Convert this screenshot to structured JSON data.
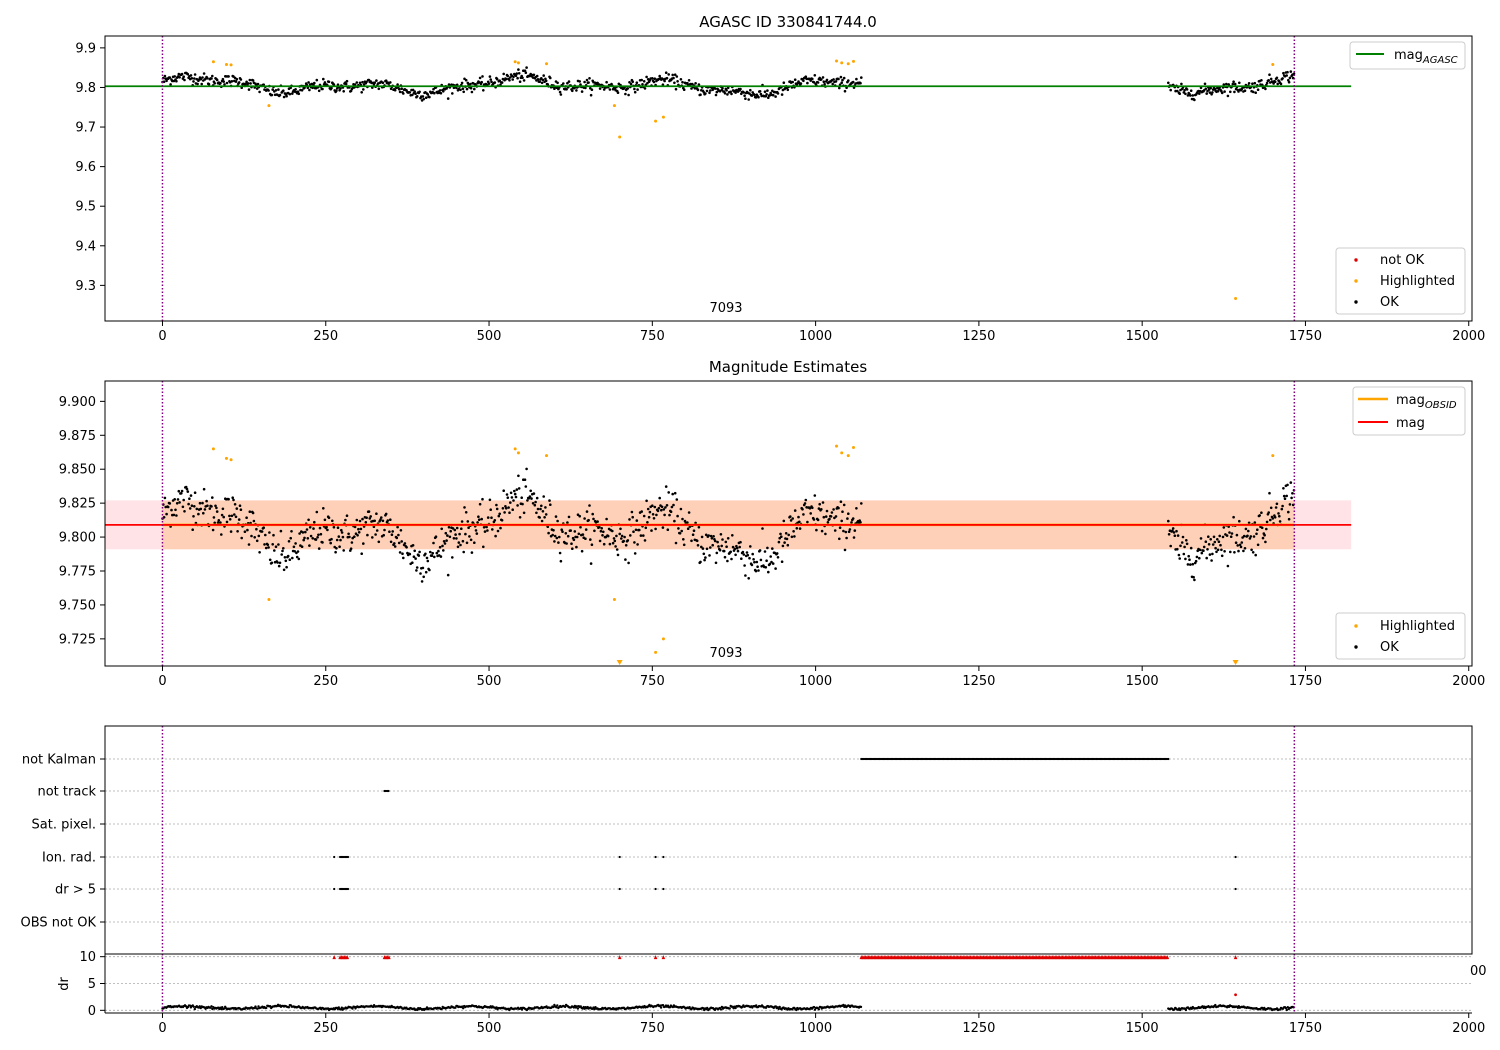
{
  "title": "AGASC ID 330841744.0",
  "panel2_title": "Magnitude Estimates",
  "obsid_label": "7093",
  "x_ticks": [
    0,
    250,
    500,
    750,
    1000,
    1250,
    1500,
    1750,
    2000
  ],
  "colors": {
    "ok": "#000000",
    "highlighted": "#ffa500",
    "not_ok": "#e00000",
    "agasc_line": "#008000",
    "mag_line": "#ff0000",
    "obsid_line": "#ffa500",
    "band": "#ffc0c8",
    "vline": "#800080"
  },
  "legend1": {
    "line": {
      "label_main": "mag",
      "label_sub": "AGASC"
    },
    "points": [
      "not OK",
      "Highlighted",
      "OK"
    ]
  },
  "legend2": {
    "lines": [
      {
        "label_main": "mag",
        "label_sub": "OBSID"
      },
      {
        "label_main": "mag",
        "label_sub": ""
      }
    ],
    "points": [
      "Highlighted",
      "OK"
    ]
  },
  "flag_labels": [
    "not Kalman",
    "not track",
    "Sat. pixel.",
    "Ion. rad.",
    "dr > 5",
    "OBS not OK"
  ],
  "dr_label": "dr",
  "dr_ticks": [
    0,
    5,
    10
  ],
  "clipped_tick_label": "00",
  "chart_data": [
    {
      "type": "scatter",
      "title": "AGASC ID 330841744.0",
      "xlim": [
        -88,
        2005
      ],
      "ylim": [
        9.21,
        9.93
      ],
      "y_ticks": [
        9.3,
        9.4,
        9.5,
        9.6,
        9.7,
        9.8,
        9.9
      ],
      "agasc_mag": 9.803,
      "vlines": [
        0,
        1733
      ],
      "segments": [
        {
          "x": [
            0,
            1070
          ],
          "mean": 9.805,
          "spread": 0.018
        },
        {
          "x": [
            1540,
            1733
          ],
          "mean": 9.802,
          "spread": 0.018
        }
      ],
      "highlighted": [
        [
          78,
          9.865
        ],
        [
          98,
          9.858
        ],
        [
          105,
          9.857
        ],
        [
          163,
          9.754
        ],
        [
          540,
          9.865
        ],
        [
          545,
          9.862
        ],
        [
          588,
          9.86
        ],
        [
          692,
          9.754
        ],
        [
          700,
          9.675
        ],
        [
          755,
          9.715
        ],
        [
          767,
          9.725
        ],
        [
          1032,
          9.867
        ],
        [
          1040,
          9.862
        ],
        [
          1050,
          9.86
        ],
        [
          1058,
          9.866
        ],
        [
          1643,
          9.267
        ],
        [
          1700,
          9.858
        ]
      ],
      "not_ok": []
    },
    {
      "type": "scatter",
      "title": "Magnitude Estimates",
      "xlim": [
        -88,
        2005
      ],
      "ylim": [
        9.705,
        9.915
      ],
      "y_ticks": [
        9.725,
        9.75,
        9.775,
        9.8,
        9.825,
        9.85,
        9.875,
        9.9
      ],
      "mag": 9.809,
      "mag_band": [
        9.791,
        9.827
      ],
      "band_x": [
        -88,
        1820
      ],
      "mag_obsid": 9.809,
      "obsid_x": [
        0,
        1733
      ],
      "vlines": [
        0,
        1733
      ],
      "highlighted": [
        [
          78,
          9.865
        ],
        [
          98,
          9.858
        ],
        [
          105,
          9.857
        ],
        [
          163,
          9.754
        ],
        [
          540,
          9.865
        ],
        [
          545,
          9.862
        ],
        [
          588,
          9.86
        ],
        [
          692,
          9.754
        ],
        [
          700,
          9.706
        ],
        [
          755,
          9.715
        ],
        [
          767,
          9.725
        ],
        [
          1032,
          9.867
        ],
        [
          1040,
          9.862
        ],
        [
          1050,
          9.86
        ],
        [
          1058,
          9.866
        ],
        [
          1643,
          9.706
        ],
        [
          1700,
          9.86
        ]
      ]
    },
    {
      "type": "scatter",
      "title": "",
      "xlim": [
        -88,
        2005
      ],
      "flag_rows": {
        "not Kalman": [
          [
            1070,
            1540
          ]
        ],
        "not track": [
          [
            340,
            347
          ]
        ],
        "Sat. pixel.": [],
        "Ion. rad.": [
          [
            263,
            263
          ],
          [
            272,
            285
          ],
          [
            700,
            700
          ],
          [
            755,
            755
          ],
          [
            767,
            767
          ],
          [
            1643,
            1643
          ]
        ],
        "dr > 5": [
          [
            263,
            263
          ],
          [
            272,
            285
          ],
          [
            700,
            700
          ],
          [
            755,
            755
          ],
          [
            767,
            767
          ],
          [
            1643,
            1643
          ]
        ],
        "OBS not OK": []
      }
    },
    {
      "type": "scatter",
      "title": "",
      "xlim": [
        -88,
        2005
      ],
      "ylim": [
        -0.5,
        10.5
      ],
      "y_ticks": [
        0,
        5,
        10
      ],
      "ylabel": "dr",
      "dr_ok_segments": [
        [
          0,
          1070
        ],
        [
          1540,
          1733
        ]
      ],
      "dr_typical": 0.5,
      "dr_outliers": [
        [
          1643,
          2.9
        ]
      ],
      "clipped_10": [
        [
          263,
          263
        ],
        [
          272,
          285
        ],
        [
          340,
          347
        ],
        [
          700,
          700
        ],
        [
          755,
          755
        ],
        [
          767,
          767
        ],
        [
          1070,
          1540
        ],
        [
          1643,
          1643
        ]
      ]
    }
  ]
}
